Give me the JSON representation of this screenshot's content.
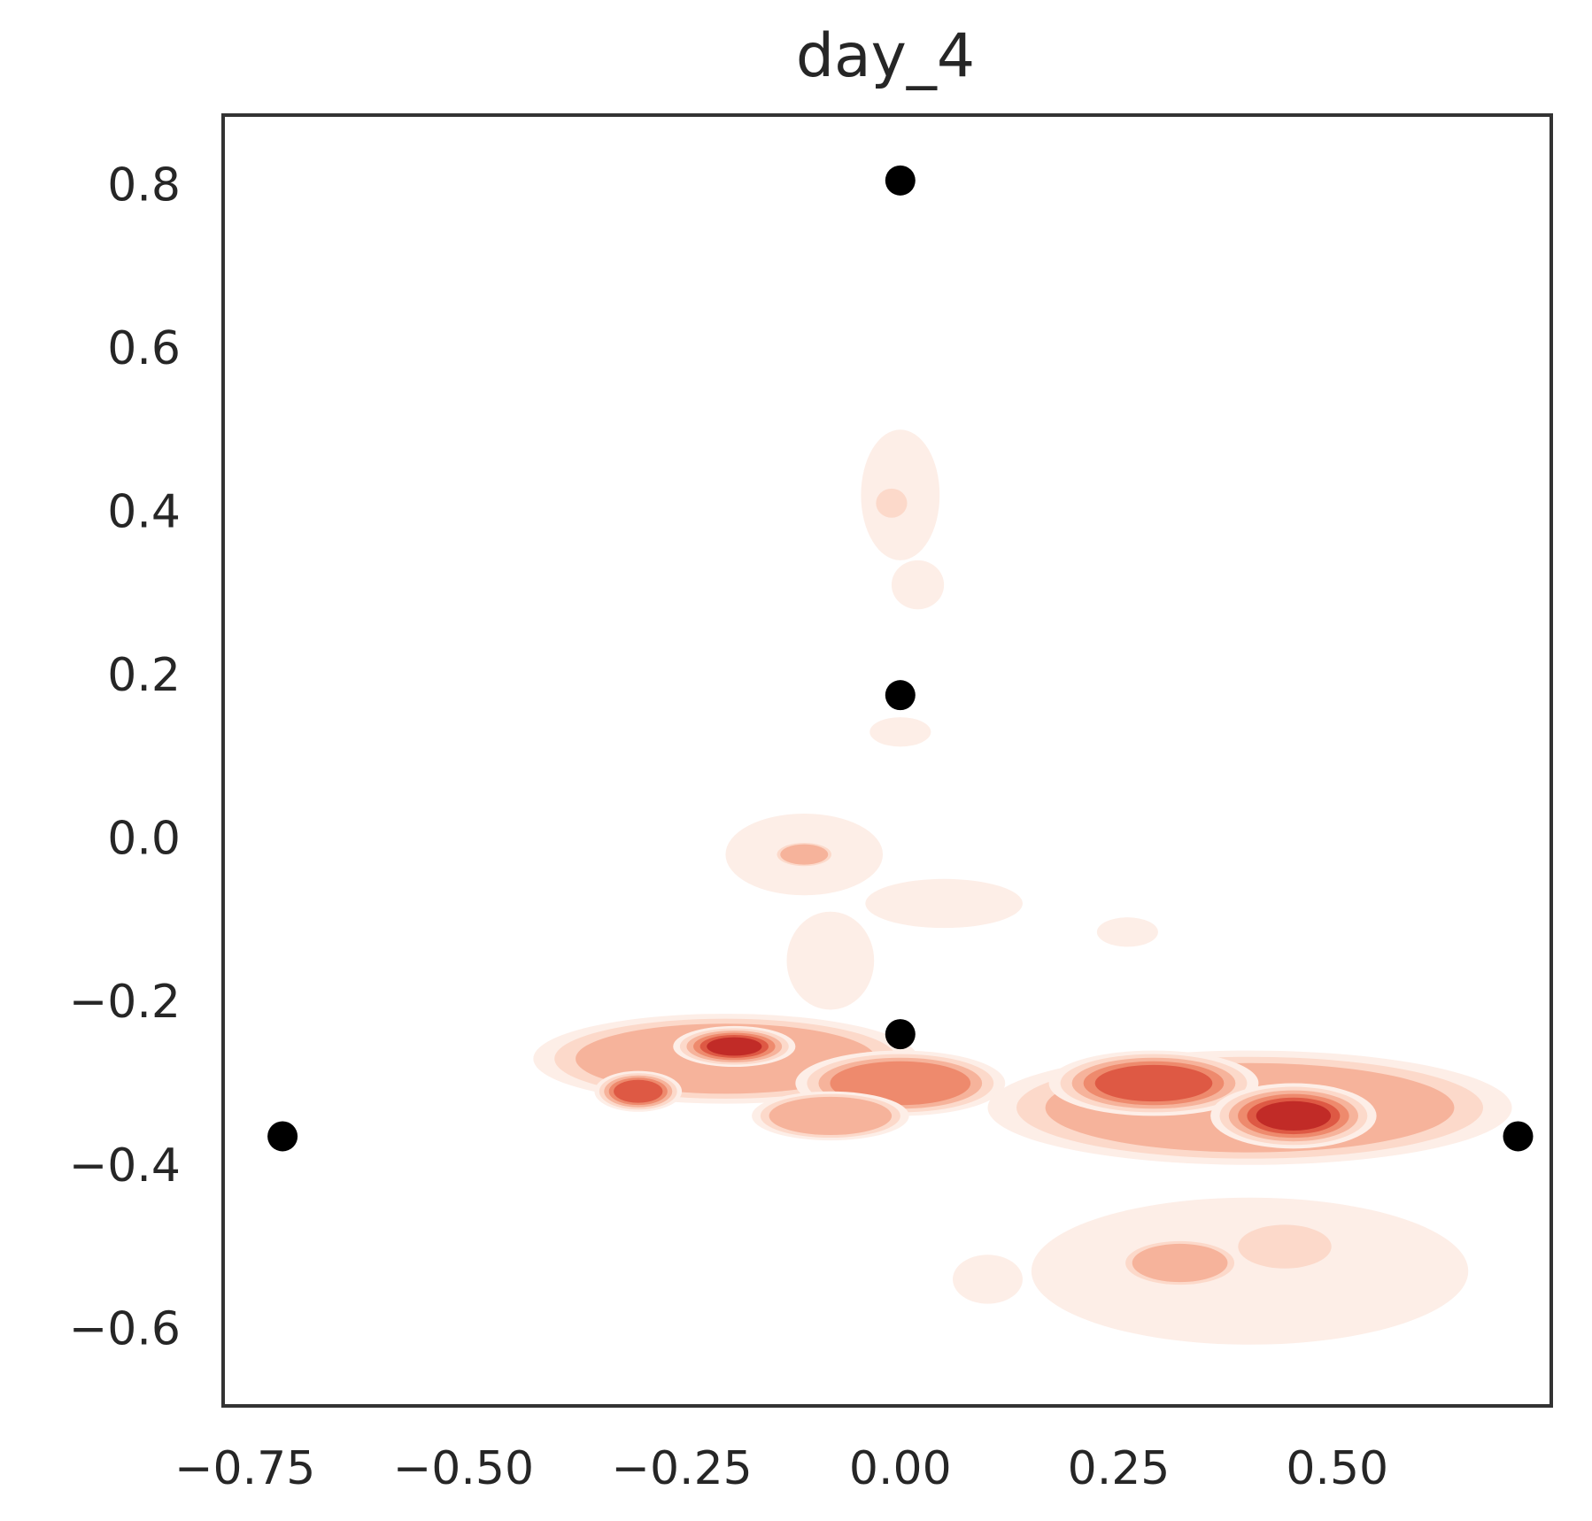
{
  "chart_data": {
    "type": "scatter",
    "title": "day_4",
    "xlabel": "",
    "ylabel": "",
    "xlim": [
      -0.775,
      0.745
    ],
    "ylim": [
      -0.695,
      0.885
    ],
    "grid": false,
    "x_ticks": [
      -0.75,
      -0.5,
      -0.25,
      0.0,
      0.25,
      0.5
    ],
    "x_tick_labels": [
      "−0.75",
      "−0.50",
      "−0.25",
      "0.00",
      "0.25",
      "0.50"
    ],
    "y_ticks": [
      0.8,
      0.6,
      0.4,
      0.2,
      0.0,
      -0.2,
      -0.4,
      -0.6
    ],
    "y_tick_labels": [
      "0.8",
      "0.6",
      "0.4",
      "0.2",
      "0.0",
      "−0.2",
      "−0.4",
      "−0.6"
    ],
    "points": [
      {
        "x": 0.0,
        "y": 0.805
      },
      {
        "x": 0.0,
        "y": 0.175
      },
      {
        "x": 0.0,
        "y": -0.24
      },
      {
        "x": -0.707,
        "y": -0.365
      },
      {
        "x": 0.707,
        "y": -0.365
      }
    ],
    "density_blobs": [
      {
        "x": 0.0,
        "y": 0.42,
        "sx": 0.045,
        "sy": 0.08,
        "level": 1
      },
      {
        "x": -0.01,
        "y": 0.41,
        "sx": 0.02,
        "sy": 0.02,
        "level": 2
      },
      {
        "x": 0.02,
        "y": 0.31,
        "sx": 0.03,
        "sy": 0.03,
        "level": 1
      },
      {
        "x": 0.0,
        "y": 0.13,
        "sx": 0.035,
        "sy": 0.018,
        "level": 1
      },
      {
        "x": -0.11,
        "y": -0.02,
        "sx": 0.09,
        "sy": 0.05,
        "level": 1
      },
      {
        "x": -0.11,
        "y": -0.02,
        "sx": 0.035,
        "sy": 0.016,
        "level": 3
      },
      {
        "x": 0.05,
        "y": -0.08,
        "sx": 0.09,
        "sy": 0.03,
        "level": 1
      },
      {
        "x": -0.08,
        "y": -0.15,
        "sx": 0.05,
        "sy": 0.06,
        "level": 1
      },
      {
        "x": 0.26,
        "y": -0.115,
        "sx": 0.035,
        "sy": 0.018,
        "level": 1
      },
      {
        "x": -0.2,
        "y": -0.27,
        "sx": 0.22,
        "sy": 0.055,
        "level": 3
      },
      {
        "x": -0.19,
        "y": -0.255,
        "sx": 0.07,
        "sy": 0.025,
        "level": 6
      },
      {
        "x": -0.3,
        "y": -0.31,
        "sx": 0.05,
        "sy": 0.025,
        "level": 5
      },
      {
        "x": 0.0,
        "y": -0.3,
        "sx": 0.12,
        "sy": 0.04,
        "level": 4
      },
      {
        "x": -0.08,
        "y": -0.34,
        "sx": 0.09,
        "sy": 0.03,
        "level": 3
      },
      {
        "x": 0.4,
        "y": -0.33,
        "sx": 0.3,
        "sy": 0.07,
        "level": 3
      },
      {
        "x": 0.29,
        "y": -0.3,
        "sx": 0.12,
        "sy": 0.04,
        "level": 5
      },
      {
        "x": 0.45,
        "y": -0.34,
        "sx": 0.095,
        "sy": 0.04,
        "level": 6
      },
      {
        "x": 0.4,
        "y": -0.53,
        "sx": 0.25,
        "sy": 0.09,
        "level": 1
      },
      {
        "x": 0.32,
        "y": -0.52,
        "sx": 0.07,
        "sy": 0.03,
        "level": 3
      },
      {
        "x": 0.44,
        "y": -0.5,
        "sx": 0.06,
        "sy": 0.03,
        "level": 2
      },
      {
        "x": 0.1,
        "y": -0.54,
        "sx": 0.04,
        "sy": 0.03,
        "level": 1
      }
    ],
    "colors": {
      "density_levels": [
        "#fdeee7",
        "#fcd9ca",
        "#f6b39b",
        "#ee8a6d",
        "#de5944",
        "#c12b27",
        "#a01c1f"
      ],
      "points": "#000000",
      "axes": "#333333",
      "text": "#262626"
    }
  }
}
